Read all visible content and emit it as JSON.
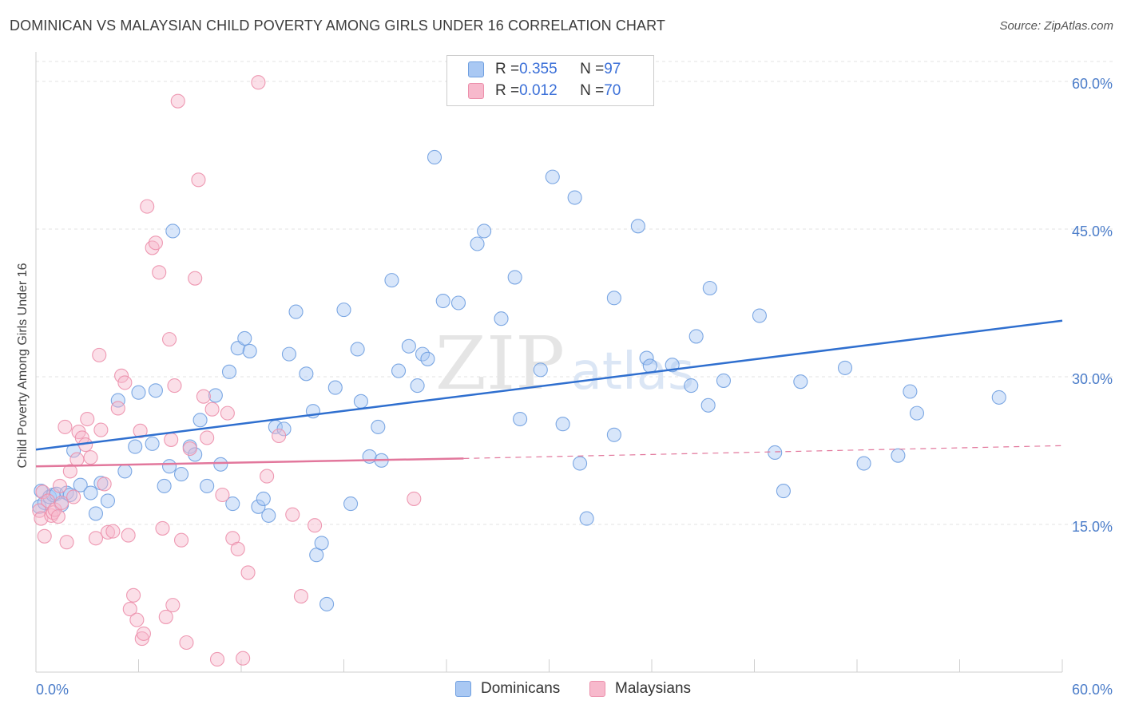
{
  "title": "DOMINICAN VS MALAYSIAN CHILD POVERTY AMONG GIRLS UNDER 16 CORRELATION CHART",
  "source": "Source: ZipAtlas.com",
  "watermark": {
    "zip": "ZIP",
    "atlas": "atlas"
  },
  "legend": {
    "rows": [
      {
        "r_label": "R = ",
        "r_value": "0.355",
        "n_label": "N = ",
        "n_value": "97"
      },
      {
        "r_label": "R = ",
        "r_value": "0.012",
        "n_label": "N = ",
        "n_value": "70"
      }
    ]
  },
  "bottom_legend": {
    "dominicans": "Dominicans",
    "malaysians": "Malaysians"
  },
  "colors": {
    "dominicans_fill": "#a9c8f3",
    "dominicans_stroke": "#6f9fe0",
    "dominicans_line": "#2f6fcf",
    "malaysians_fill": "#f7b9cc",
    "malaysians_stroke": "#ec8fab",
    "malaysians_line": "#e2779c",
    "tick_text": "#4a7cc9",
    "grid": "#e3e3e3"
  },
  "chart_data": {
    "type": "scatter",
    "title": "DOMINICAN VS MALAYSIAN CHILD POVERTY AMONG GIRLS UNDER 16 CORRELATION CHART",
    "xlabel": "",
    "ylabel": "Child Poverty Among Girls Under 16",
    "xlim": [
      0,
      60
    ],
    "ylim": [
      0,
      63
    ],
    "x_tick_labels": {
      "left": "0.0%",
      "right": "60.0%"
    },
    "y_ticks": [
      {
        "value": 15,
        "label": "15.0%"
      },
      {
        "value": 30,
        "label": "30.0%"
      },
      {
        "value": 45,
        "label": "45.0%"
      },
      {
        "value": 60,
        "label": "60.0%"
      }
    ],
    "grid": true,
    "legend_position": "top-center",
    "series": [
      {
        "name": "Dominicans",
        "r": 0.355,
        "n": 97,
        "trend": {
          "x0": 0,
          "y0": 22.6,
          "x1": 60,
          "y1": 35.7
        },
        "points": [
          [
            0.2,
            16.8
          ],
          [
            0.3,
            18.4
          ],
          [
            0.5,
            17.2
          ],
          [
            0.8,
            17.8
          ],
          [
            1.0,
            18.0
          ],
          [
            1.2,
            18.1
          ],
          [
            1.5,
            17.0
          ],
          [
            1.8,
            18.2
          ],
          [
            2.0,
            18.0
          ],
          [
            2.2,
            22.5
          ],
          [
            2.6,
            19.0
          ],
          [
            3.2,
            18.2
          ],
          [
            3.5,
            16.1
          ],
          [
            3.8,
            19.2
          ],
          [
            4.2,
            17.4
          ],
          [
            4.8,
            27.6
          ],
          [
            5.2,
            20.4
          ],
          [
            5.8,
            22.9
          ],
          [
            6.0,
            28.4
          ],
          [
            6.8,
            23.2
          ],
          [
            7.0,
            28.6
          ],
          [
            7.5,
            18.9
          ],
          [
            7.8,
            20.9
          ],
          [
            8.0,
            44.8
          ],
          [
            8.5,
            20.1
          ],
          [
            9.0,
            22.9
          ],
          [
            9.3,
            22.1
          ],
          [
            9.6,
            25.6
          ],
          [
            10.0,
            18.9
          ],
          [
            10.5,
            28.1
          ],
          [
            10.8,
            21.1
          ],
          [
            11.3,
            30.5
          ],
          [
            11.5,
            17.1
          ],
          [
            11.8,
            32.9
          ],
          [
            12.2,
            33.9
          ],
          [
            12.5,
            32.6
          ],
          [
            13.0,
            16.8
          ],
          [
            13.3,
            17.6
          ],
          [
            13.6,
            15.9
          ],
          [
            14.0,
            24.9
          ],
          [
            14.5,
            24.7
          ],
          [
            14.8,
            32.3
          ],
          [
            15.2,
            36.6
          ],
          [
            15.8,
            30.3
          ],
          [
            16.2,
            26.5
          ],
          [
            16.4,
            11.9
          ],
          [
            16.7,
            13.1
          ],
          [
            17.0,
            6.9
          ],
          [
            17.5,
            28.9
          ],
          [
            18.0,
            36.8
          ],
          [
            18.4,
            17.1
          ],
          [
            18.8,
            32.8
          ],
          [
            19.0,
            27.5
          ],
          [
            19.5,
            21.9
          ],
          [
            20.0,
            24.9
          ],
          [
            20.2,
            21.5
          ],
          [
            20.8,
            39.8
          ],
          [
            21.2,
            30.6
          ],
          [
            21.8,
            33.1
          ],
          [
            22.3,
            29.1
          ],
          [
            22.6,
            32.3
          ],
          [
            22.9,
            31.8
          ],
          [
            23.3,
            52.3
          ],
          [
            23.8,
            37.7
          ],
          [
            24.7,
            37.5
          ],
          [
            25.8,
            43.5
          ],
          [
            26.2,
            44.8
          ],
          [
            27.2,
            35.9
          ],
          [
            28.0,
            40.1
          ],
          [
            28.3,
            25.7
          ],
          [
            29.5,
            30.7
          ],
          [
            30.2,
            50.3
          ],
          [
            30.8,
            25.2
          ],
          [
            31.5,
            48.2
          ],
          [
            31.8,
            21.2
          ],
          [
            32.2,
            15.6
          ],
          [
            33.8,
            24.1
          ],
          [
            33.8,
            38.0
          ],
          [
            35.2,
            45.3
          ],
          [
            35.7,
            31.9
          ],
          [
            35.9,
            31.1
          ],
          [
            37.2,
            31.2
          ],
          [
            38.3,
            29.1
          ],
          [
            38.6,
            34.1
          ],
          [
            39.3,
            27.1
          ],
          [
            39.4,
            39.0
          ],
          [
            40.2,
            29.6
          ],
          [
            42.3,
            36.2
          ],
          [
            43.2,
            22.3
          ],
          [
            43.7,
            18.4
          ],
          [
            44.7,
            29.5
          ],
          [
            47.3,
            30.9
          ],
          [
            48.4,
            21.2
          ],
          [
            50.4,
            22.0
          ],
          [
            51.1,
            28.5
          ],
          [
            51.5,
            26.3
          ],
          [
            56.3,
            27.9
          ]
        ]
      },
      {
        "name": "Malaysians",
        "r": 0.012,
        "n": 70,
        "trend": {
          "x0": 0,
          "y0": 20.9,
          "x1": 25,
          "y1": 21.7,
          "dashed_to_x": 60,
          "dashed_to_y": 23.0
        },
        "points": [
          [
            0.2,
            16.4
          ],
          [
            0.3,
            15.6
          ],
          [
            0.4,
            18.3
          ],
          [
            0.5,
            13.8
          ],
          [
            0.7,
            17.4
          ],
          [
            0.9,
            15.9
          ],
          [
            1.0,
            16.2
          ],
          [
            1.1,
            16.5
          ],
          [
            1.3,
            15.8
          ],
          [
            1.4,
            18.9
          ],
          [
            1.5,
            17.2
          ],
          [
            1.7,
            24.9
          ],
          [
            1.8,
            13.2
          ],
          [
            2.0,
            20.4
          ],
          [
            2.2,
            17.8
          ],
          [
            2.4,
            21.6
          ],
          [
            2.5,
            24.4
          ],
          [
            2.7,
            23.8
          ],
          [
            2.9,
            23.1
          ],
          [
            3.0,
            25.7
          ],
          [
            3.2,
            21.8
          ],
          [
            3.5,
            13.6
          ],
          [
            3.7,
            32.2
          ],
          [
            3.8,
            24.6
          ],
          [
            4.0,
            19.1
          ],
          [
            4.2,
            14.2
          ],
          [
            4.5,
            14.3
          ],
          [
            4.8,
            26.8
          ],
          [
            5.0,
            30.1
          ],
          [
            5.2,
            29.4
          ],
          [
            5.4,
            13.9
          ],
          [
            5.5,
            6.4
          ],
          [
            5.7,
            7.8
          ],
          [
            5.9,
            5.3
          ],
          [
            6.1,
            24.5
          ],
          [
            6.2,
            3.4
          ],
          [
            6.3,
            3.9
          ],
          [
            6.5,
            47.3
          ],
          [
            6.8,
            43.1
          ],
          [
            7.0,
            43.6
          ],
          [
            7.2,
            40.6
          ],
          [
            7.4,
            14.6
          ],
          [
            7.6,
            5.6
          ],
          [
            7.8,
            33.8
          ],
          [
            7.9,
            23.6
          ],
          [
            8.1,
            29.1
          ],
          [
            8.3,
            58.0
          ],
          [
            8.5,
            13.4
          ],
          [
            8.8,
            3.0
          ],
          [
            9.0,
            22.7
          ],
          [
            9.3,
            40.0
          ],
          [
            9.5,
            50.0
          ],
          [
            9.8,
            28.0
          ],
          [
            10.0,
            23.8
          ],
          [
            10.3,
            26.7
          ],
          [
            10.6,
            1.3
          ],
          [
            10.9,
            18.0
          ],
          [
            11.2,
            26.3
          ],
          [
            11.5,
            13.6
          ],
          [
            11.8,
            12.5
          ],
          [
            12.1,
            1.4
          ],
          [
            12.4,
            10.1
          ],
          [
            13.0,
            59.9
          ],
          [
            13.5,
            19.9
          ],
          [
            14.2,
            24.0
          ],
          [
            15.0,
            16.0
          ],
          [
            15.5,
            7.7
          ],
          [
            16.3,
            14.9
          ],
          [
            22.1,
            17.6
          ],
          [
            8.0,
            6.8
          ]
        ]
      }
    ]
  }
}
